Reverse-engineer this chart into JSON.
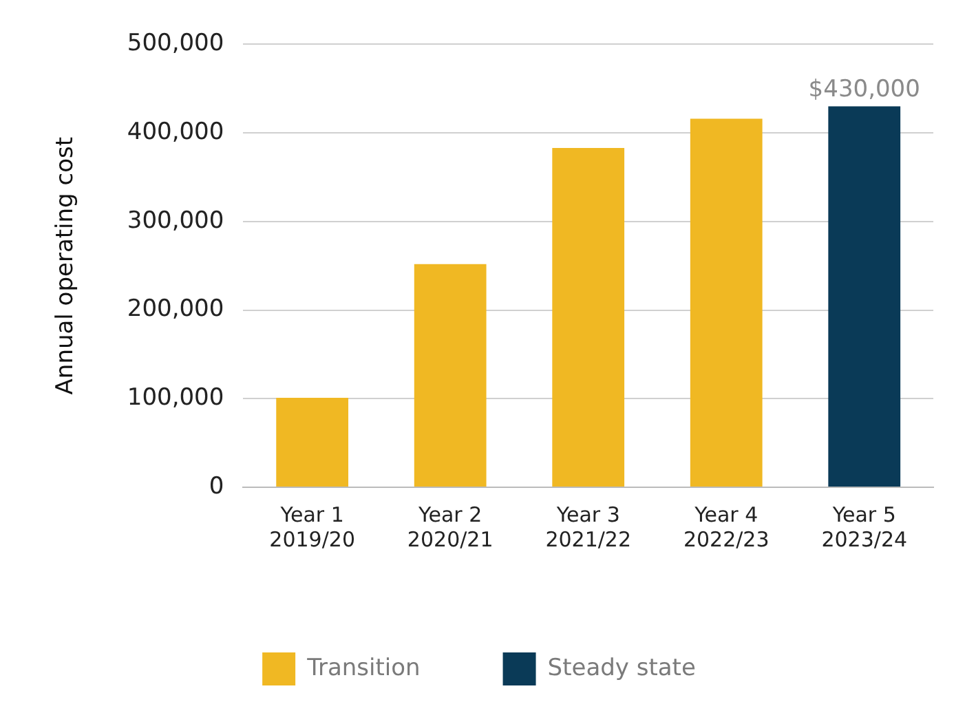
{
  "chart_data": {
    "type": "bar",
    "ylabel": "Annual operating cost",
    "categories": [
      "Year 1\n2019/20",
      "Year 2\n2020/21",
      "Year 3\n2021/22",
      "Year 4\n2022/23",
      "Year 5\n2023/24"
    ],
    "series": [
      {
        "name": "Transition",
        "color": "#f0b823",
        "values": [
          101000,
          252000,
          383000,
          416000,
          null
        ]
      },
      {
        "name": "Steady state",
        "color": "#0a3a57",
        "values": [
          null,
          null,
          null,
          null,
          430000
        ],
        "value_labels": [
          null,
          null,
          null,
          null,
          "$430,000"
        ]
      }
    ],
    "ylim": [
      0,
      500000
    ],
    "yticks": [
      {
        "value": 0,
        "label": "0"
      },
      {
        "value": 100000,
        "label": "100,000"
      },
      {
        "value": 200000,
        "label": "200,000"
      },
      {
        "value": 300000,
        "label": "300,000"
      },
      {
        "value": 400000,
        "label": "400,000"
      },
      {
        "value": 500000,
        "label": "500,000"
      }
    ],
    "grid": "y",
    "legend": "bottom"
  }
}
